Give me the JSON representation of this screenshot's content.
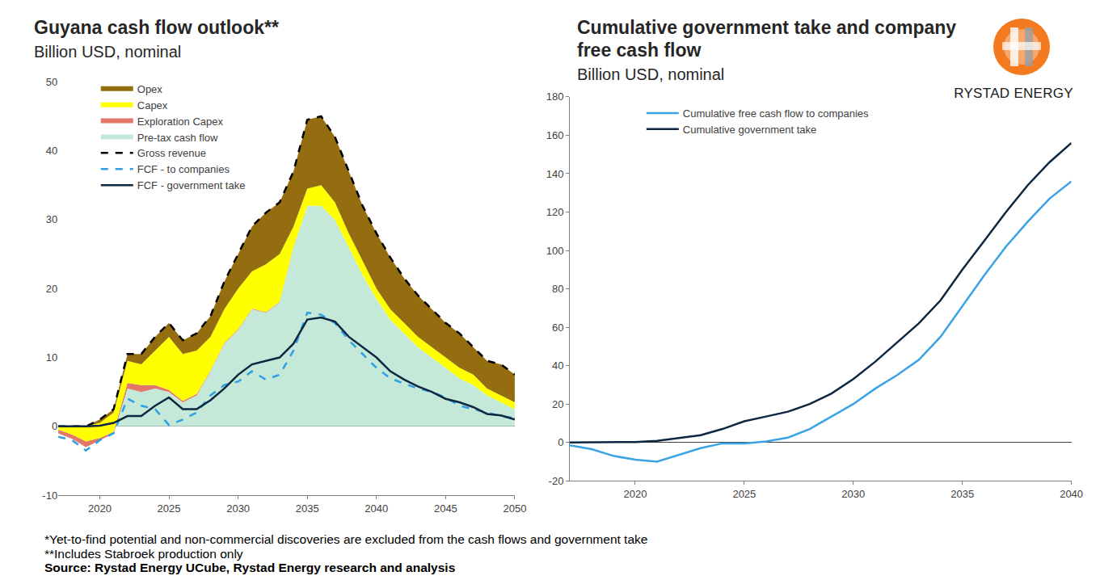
{
  "logo_text": "RYSTAD ENERGY",
  "footnotes": [
    "*Yet-to-find potential and non-commercial discoveries are excluded from the cash flows and government take",
    "**Includes Stabroek production only"
  ],
  "source": "Source: Rystad Energy UCube, Rystad Energy research and analysis",
  "chart_data": [
    {
      "type": "area",
      "title": "Guyana cash flow outlook**",
      "subtitle": "Billion USD, nominal",
      "stacked": true,
      "grid": false,
      "legend": "upper left",
      "x": [
        2017,
        2018,
        2019,
        2020,
        2021,
        2022,
        2023,
        2024,
        2025,
        2026,
        2027,
        2028,
        2029,
        2030,
        2031,
        2032,
        2033,
        2034,
        2035,
        2036,
        2037,
        2038,
        2039,
        2040,
        2041,
        2042,
        2043,
        2044,
        2045,
        2046,
        2047,
        2048,
        2049,
        2050
      ],
      "xlim": [
        2017,
        2050
      ],
      "xticks": [
        2020,
        2025,
        2030,
        2035,
        2040,
        2045,
        2050
      ],
      "ylim": [
        -10,
        50
      ],
      "yticks": [
        -10,
        0,
        10,
        20,
        30,
        40,
        50
      ],
      "series": [
        {
          "name": "Pre-tax cash flow",
          "type": "area",
          "color": "#c5e9d9",
          "values": [
            -1,
            -1.8,
            -3,
            -2,
            -1,
            5.5,
            5,
            5.5,
            5,
            3.5,
            4.5,
            8,
            12,
            14,
            17,
            16.5,
            18,
            26,
            32,
            32,
            30,
            26,
            22,
            18.5,
            15.5,
            13.5,
            11.5,
            10,
            8.5,
            7,
            6,
            4.5,
            3.5,
            2.5
          ]
        },
        {
          "name": "Exploration Capex",
          "type": "area",
          "color": "#e2776a",
          "values": [
            0.5,
            0.6,
            0.8,
            0.3,
            0.2,
            0.8,
            1,
            0.5,
            0.3,
            0.2,
            0.2,
            0.1,
            0.1,
            0.1,
            0.1,
            0.1,
            0.1,
            0.1,
            0,
            0,
            0,
            0,
            0,
            0,
            0,
            0,
            0,
            0,
            0,
            0,
            0,
            0,
            0,
            0
          ]
        },
        {
          "name": "Capex",
          "type": "area",
          "color": "#ffff00",
          "values": [
            0.5,
            1.2,
            2.2,
            2.2,
            2.8,
            3.2,
            3,
            5,
            7.7,
            6.8,
            6.3,
            4.9,
            4.9,
            5.9,
            5.4,
            6.9,
            6.9,
            2.9,
            2.5,
            3,
            2.5,
            2,
            2,
            1.5,
            1.5,
            1.5,
            1.5,
            1.5,
            1.5,
            1.5,
            1.5,
            1,
            1,
            1
          ]
        },
        {
          "name": "Opex",
          "type": "area",
          "color": "#936d10",
          "values": [
            0,
            0,
            0,
            0.5,
            0.5,
            1,
            1.5,
            2,
            2,
            2,
            2.5,
            3,
            4,
            5,
            6.5,
            7.5,
            7.5,
            8,
            10,
            10,
            9.5,
            9,
            8,
            8,
            7.5,
            6.5,
            6,
            5.5,
            5,
            5,
            4,
            4,
            4.5,
            4
          ]
        },
        {
          "name": "Gross revenue",
          "type": "line",
          "line_style": "dashed",
          "color": "#000000",
          "values": [
            0,
            0,
            0,
            1,
            2.5,
            10.5,
            10.5,
            13,
            15,
            12.5,
            13.5,
            16,
            21,
            25,
            29,
            31,
            32.5,
            37,
            44.5,
            45,
            42,
            37,
            32,
            28,
            24.5,
            21.5,
            19,
            17,
            15,
            13.5,
            11.5,
            9.5,
            9,
            7.5
          ]
        },
        {
          "name": "FCF - to companies",
          "type": "line",
          "line_style": "dashed",
          "color": "#2e9fe2",
          "values": [
            -1.5,
            -2,
            -3.5,
            -2,
            -1,
            4,
            3,
            2.5,
            0.2,
            1,
            2,
            4.5,
            6,
            6.5,
            8,
            6.8,
            7.5,
            11,
            16.5,
            16.2,
            15,
            12.5,
            10.5,
            8.5,
            7,
            6.2,
            5.5,
            5,
            4.2,
            3,
            2.5,
            2,
            1.5,
            1.2
          ]
        },
        {
          "name": "FCF - government take",
          "type": "line",
          "line_style": "solid",
          "color": "#0d2740",
          "values": [
            0,
            0,
            0,
            0.1,
            0.5,
            1.5,
            1.5,
            3,
            4.2,
            2.5,
            2.5,
            3.8,
            5.5,
            7.5,
            9,
            9.5,
            10,
            12,
            15.5,
            15.8,
            15.2,
            13,
            11.5,
            10,
            8,
            6.8,
            5.8,
            5,
            4,
            3.5,
            2.8,
            1.8,
            1.6,
            1
          ]
        }
      ]
    },
    {
      "type": "line",
      "title": "Cumulative government take and company free cash flow",
      "subtitle": "Billion USD, nominal",
      "grid": false,
      "legend": "upper left",
      "x": [
        2017,
        2018,
        2019,
        2020,
        2021,
        2022,
        2023,
        2024,
        2025,
        2026,
        2027,
        2028,
        2029,
        2030,
        2031,
        2032,
        2033,
        2034,
        2035,
        2036,
        2037,
        2038,
        2039,
        2040
      ],
      "xlim": [
        2017,
        2040
      ],
      "xticks": [
        2020,
        2025,
        2030,
        2035,
        2040
      ],
      "ylim": [
        -20,
        180
      ],
      "yticks": [
        -20,
        0,
        20,
        40,
        60,
        80,
        100,
        120,
        140,
        160,
        180
      ],
      "series": [
        {
          "name": "Cumulative free cash flow to companies",
          "color": "#3aa3e6",
          "line_style": "solid",
          "values": [
            -1.5,
            -3.5,
            -7,
            -9,
            -10,
            -6.5,
            -3,
            -0.5,
            -0.5,
            0.5,
            2.5,
            7,
            13.5,
            20,
            28,
            35,
            43,
            55,
            71,
            87,
            102,
            115,
            127,
            136
          ]
        },
        {
          "name": "Cumulative government take",
          "color": "#0d2740",
          "line_style": "solid",
          "values": [
            0,
            0,
            0,
            0.2,
            0.8,
            2.3,
            3.8,
            7,
            11,
            13.5,
            16,
            20,
            25.5,
            33,
            42,
            52,
            62,
            74,
            90,
            105,
            120,
            134,
            146,
            156
          ]
        }
      ]
    }
  ]
}
